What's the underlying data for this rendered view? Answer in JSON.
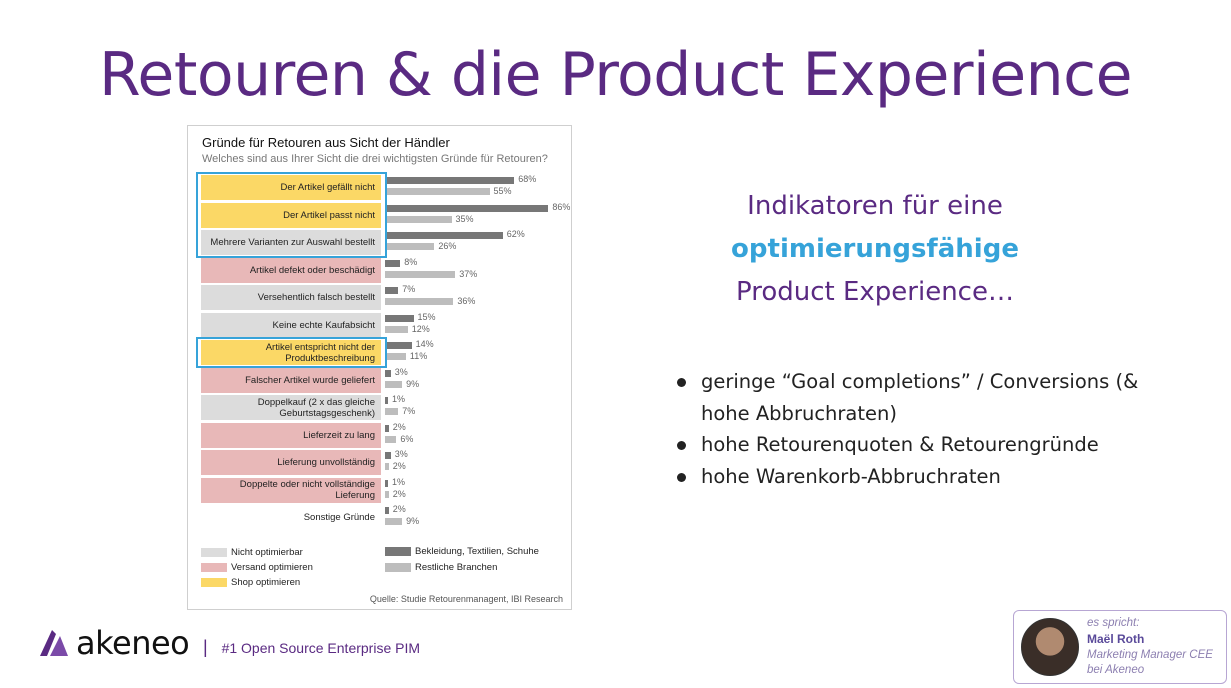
{
  "title": "Retouren & die Product Experience",
  "chart": {
    "title": "Gründe für Retouren aus Sicht der Händler",
    "subtitle": "Welches sind aus Ihrer Sicht die drei wichtigsten Gründe für Retouren?",
    "source": "Quelle:  Studie Retourenmanagent, IBI Research",
    "legend": {
      "nicht_optimierbar": "Nicht optimierbar",
      "versand_optimieren": "Versand optimieren",
      "shop_optimieren": "Shop optimieren",
      "bekleidung": "Bekleidung, Textilien, Schuhe",
      "restliche": "Restliche Branchen"
    },
    "colors": {
      "nicht_optimierbar": "#dcdcdc",
      "versand_optimieren": "#e8b8b8",
      "shop_optimieren": "#fbd866",
      "bekleidung": "#777777",
      "restliche": "#bdbdbd",
      "highlight": "#36a3d9"
    },
    "rows": [
      {
        "label": "Der Artikel gefällt nicht",
        "cat": "yellow",
        "a": 68,
        "b": 55,
        "a_label": "68%",
        "b_label": "55%"
      },
      {
        "label": "Der Artikel passt nicht",
        "cat": "yellow",
        "a": 86,
        "b": 35,
        "a_label": "86%",
        "b_label": "35%"
      },
      {
        "label": "Mehrere Varianten zur Auswahl bestellt",
        "cat": "gray",
        "a": 62,
        "b": 26,
        "a_label": "62%",
        "b_label": "26%"
      },
      {
        "label": "Artikel defekt oder beschädigt",
        "cat": "pink",
        "a": 8,
        "b": 37,
        "a_label": "8%",
        "b_label": "37%"
      },
      {
        "label": "Versehentlich falsch bestellt",
        "cat": "gray",
        "a": 7,
        "b": 36,
        "a_label": "7%",
        "b_label": "36%"
      },
      {
        "label": "Keine echte Kaufabsicht",
        "cat": "gray",
        "a": 15,
        "b": 12,
        "a_label": "15%",
        "b_label": "12%"
      },
      {
        "label": "Artikel entspricht nicht der Produktbeschreibung",
        "cat": "yellow",
        "a": 14,
        "b": 11,
        "a_label": "14%",
        "b_label": "11%"
      },
      {
        "label": "Falscher Artikel wurde geliefert",
        "cat": "pink",
        "a": 3,
        "b": 9,
        "a_label": "3%",
        "b_label": "9%"
      },
      {
        "label": "Doppelkauf (2 x das gleiche Geburtstagsgeschenk)",
        "cat": "gray",
        "a": 1,
        "b": 7,
        "a_label": "1%",
        "b_label": "7%"
      },
      {
        "label": "Lieferzeit zu lang",
        "cat": "pink",
        "a": 2,
        "b": 6,
        "a_label": "2%",
        "b_label": "6%"
      },
      {
        "label": "Lieferung unvollständig",
        "cat": "pink",
        "a": 3,
        "b": 2,
        "a_label": "3%",
        "b_label": "2%"
      },
      {
        "label": "Doppelte oder nicht vollständige Lieferung",
        "cat": "pink",
        "a": 1,
        "b": 2,
        "a_label": "1%",
        "b_label": "2%"
      },
      {
        "label": "Sonstige Gründe",
        "cat": "none",
        "a": 2,
        "b": 9,
        "a_label": "2%",
        "b_label": "9%"
      }
    ]
  },
  "chart_data": {
    "type": "bar",
    "title": "Gründe für Retouren aus Sicht der Händler",
    "subtitle": "Welches sind aus Ihrer Sicht die drei wichtigsten Gründe für Retouren?",
    "orientation": "horizontal",
    "categories": [
      "Der Artikel gefällt nicht",
      "Der Artikel passt nicht",
      "Mehrere Varianten zur Auswahl bestellt",
      "Artikel defekt oder beschädigt",
      "Versehentlich falsch bestellt",
      "Keine echte Kaufabsicht",
      "Artikel entspricht nicht der Produktbeschreibung",
      "Falscher Artikel wurde geliefert",
      "Doppelkauf (2 x das gleiche Geburtstagsgeschenk)",
      "Lieferzeit zu lang",
      "Lieferung unvollständig",
      "Doppelte oder nicht vollständige Lieferung",
      "Sonstige Gründe"
    ],
    "series": [
      {
        "name": "Bekleidung, Textilien, Schuhe",
        "values": [
          68,
          86,
          62,
          8,
          7,
          15,
          14,
          3,
          1,
          2,
          3,
          1,
          2
        ]
      },
      {
        "name": "Restliche Branchen",
        "values": [
          55,
          35,
          26,
          37,
          36,
          12,
          11,
          9,
          7,
          6,
          2,
          2,
          9
        ]
      }
    ],
    "unit": "%",
    "legend_position": "bottom"
  },
  "indikator": {
    "line1": "Indikatoren für eine",
    "line2": "optimierungsfähige",
    "line3": "Product Experience…"
  },
  "bullets": [
    "geringe “Goal completions” / Conversions (& hohe Abbruchraten)",
    "hohe Retourenquoten & Retourengründe",
    "hohe Warenkorb-Abbruchraten"
  ],
  "footer": {
    "brand": "akeneo",
    "separator": "|",
    "tagline": "#1 Open Source Enterprise PIM"
  },
  "speaker": {
    "intro": "es spricht:",
    "name": "Maël Roth",
    "role_line1": "Marketing Manager CEE",
    "role_line2": "bei Akeneo"
  }
}
